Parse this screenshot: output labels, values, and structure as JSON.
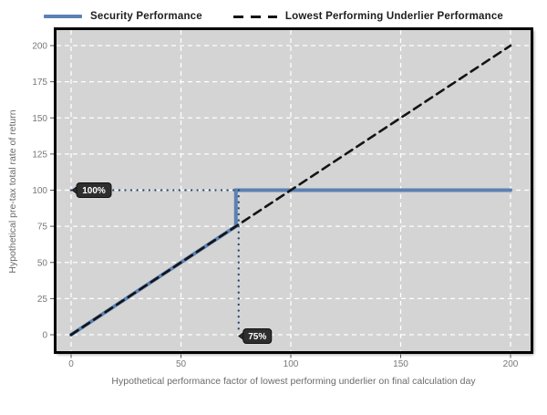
{
  "legend": {
    "items": [
      {
        "label": "Security Performance",
        "swatch": "solid-line",
        "color": "#5b81b4"
      },
      {
        "label": "Lowest Performing Underlier Performance",
        "swatch": "dashed-line",
        "color": "#141414"
      }
    ]
  },
  "chart_data": {
    "type": "line",
    "title": "",
    "xlabel": "Hypothetical performance factor of lowest performing underlier on final calculation day",
    "ylabel": "Hypothetical pre-tax total rate of return",
    "xlim": [
      0,
      200
    ],
    "ylim": [
      0,
      200
    ],
    "xticks": [
      0,
      50,
      100,
      150,
      200
    ],
    "yticks": [
      0,
      25,
      50,
      75,
      100,
      125,
      150,
      175,
      200
    ],
    "grid": true,
    "grid_color": "#ffffff",
    "grid_style": "dashed",
    "plot_background": "#d4d4d4",
    "plot_border_color": "#000000",
    "tick_label_color": "#787878",
    "legend_position": "top",
    "series": [
      {
        "name": "Security Performance",
        "style": "solid",
        "color": "#5b81b4",
        "width": 4,
        "points": [
          [
            0,
            0
          ],
          [
            75,
            75
          ],
          [
            75,
            100
          ],
          [
            200,
            100
          ]
        ]
      },
      {
        "name": "Lowest Performing Underlier Performance",
        "style": "dashed",
        "color": "#141414",
        "width": 2.6,
        "points": [
          [
            0,
            0
          ],
          [
            200,
            200
          ]
        ]
      }
    ],
    "annotations": [
      {
        "label": "100%",
        "anchor_x": 0,
        "anchor_y": 100,
        "guide_from": [
          0,
          100
        ],
        "guide_to": [
          75,
          100
        ]
      },
      {
        "label": "75%",
        "anchor_x": 75,
        "anchor_y": 0,
        "guide_from": [
          75,
          100
        ],
        "guide_to": [
          75,
          1
        ]
      }
    ],
    "annotation_style": {
      "bg": "#2e2e2e",
      "border": "#111111",
      "text_color": "#ffffff",
      "guide_color": "#2a4a73"
    }
  }
}
